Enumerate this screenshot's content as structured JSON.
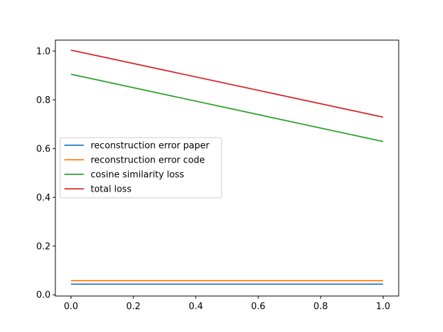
{
  "chart_data": {
    "type": "line",
    "title": "",
    "xlabel": "",
    "ylabel": "",
    "xlim": [
      -0.05,
      1.05
    ],
    "ylim": [
      -0.005,
      1.045
    ],
    "xticks": [
      "0.0",
      "0.2",
      "0.4",
      "0.6",
      "0.8",
      "1.0"
    ],
    "yticks": [
      "0.0",
      "0.2",
      "0.4",
      "0.6",
      "0.8",
      "1.0"
    ],
    "x": [
      0.0,
      1.0
    ],
    "series": [
      {
        "name": "reconstruction error paper",
        "color": "#1f77b4",
        "values": [
          0.044,
          0.044
        ]
      },
      {
        "name": "reconstruction error code",
        "color": "#ff7f0e",
        "values": [
          0.058,
          0.058
        ]
      },
      {
        "name": "cosine similarity loss",
        "color": "#2ca02c",
        "values": [
          0.905,
          0.629
        ]
      },
      {
        "name": "total loss",
        "color": "#d62728",
        "values": [
          1.004,
          0.729
        ]
      }
    ],
    "grid": false,
    "legend_position": "center-left"
  }
}
